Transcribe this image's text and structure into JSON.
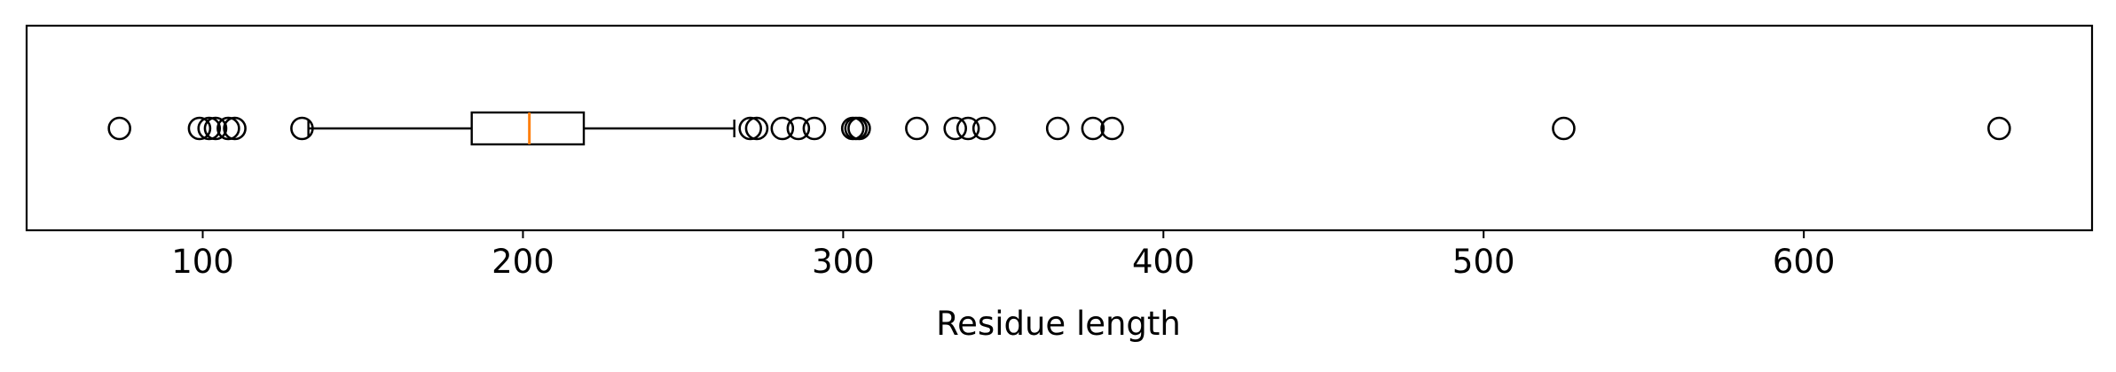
{
  "chart_data": {
    "type": "boxplot",
    "orientation": "horizontal",
    "title": "",
    "xlabel": "Residue length",
    "ylabel": "",
    "xlim": [
      45,
      690
    ],
    "xticks": [
      100,
      200,
      300,
      400,
      500,
      600
    ],
    "xtick_labels": [
      "100",
      "200",
      "300",
      "400",
      "500",
      "600"
    ],
    "yticks_visible": false,
    "grid": false,
    "box": {
      "whisker_low": 133,
      "q1": 184,
      "median": 202,
      "q3": 219,
      "whisker_high": 266
    },
    "outliers": [
      74,
      99,
      102,
      104,
      108,
      110,
      131,
      271,
      273,
      281,
      286,
      291,
      303,
      304,
      305,
      323,
      335,
      339,
      344,
      367,
      378,
      384,
      525,
      661
    ],
    "colors": {
      "box": "#000000",
      "median": "#ff7f0e",
      "outlier_edge": "#000000",
      "outlier_face": "none"
    }
  }
}
